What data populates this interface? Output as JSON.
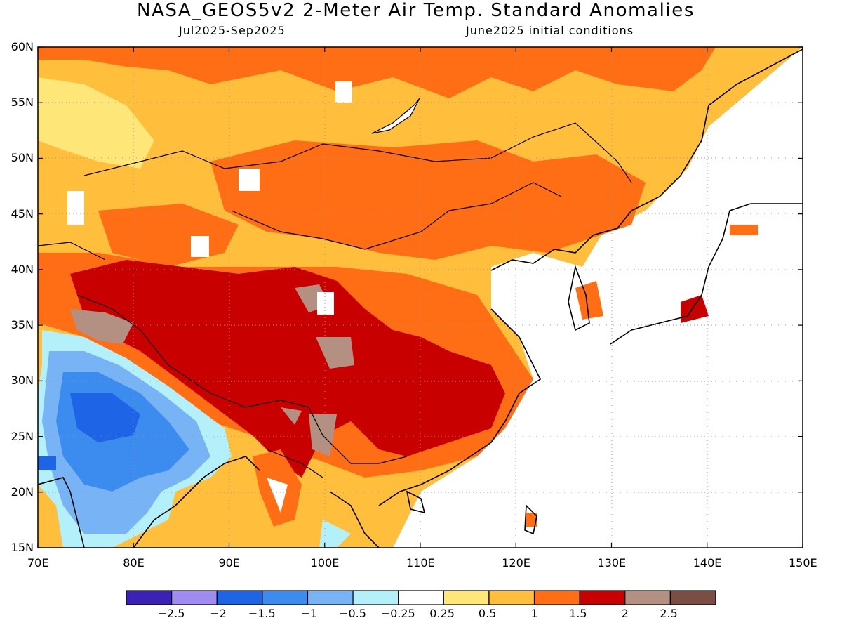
{
  "header": {
    "title": "NASA_GEOS5v2 2-Meter Air Temp. Standard Anomalies",
    "period": "Jul2025-Sep2025",
    "init": "June2025 initial conditions"
  },
  "map": {
    "lon_range": [
      70,
      150
    ],
    "lat_range": [
      15,
      60
    ],
    "lat_labels": [
      "15N",
      "20N",
      "25N",
      "30N",
      "35N",
      "40N",
      "45N",
      "50N",
      "55N",
      "60N"
    ],
    "lon_labels": [
      "70E",
      "80E",
      "90E",
      "100E",
      "110E",
      "120E",
      "130E",
      "140E",
      "150E"
    ]
  },
  "colorbar": {
    "colors": [
      "#3b22b4",
      "#a08cf0",
      "#1e64e6",
      "#3c8cf0",
      "#78b4f5",
      "#b4f0fa",
      "#ffffff",
      "#ffe678",
      "#ffbe3c",
      "#ff6e14",
      "#c80000",
      "#b49082",
      "#7a4e42"
    ],
    "labels": [
      "-2.5",
      "-2",
      "-1.5",
      "-1",
      "-0.5",
      "-0.25",
      "0.25",
      "0.5",
      "1",
      "1.5",
      "2",
      "2.5"
    ]
  }
}
